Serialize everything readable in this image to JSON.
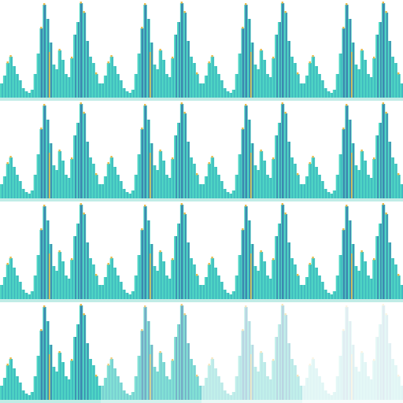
{
  "sheet": {
    "rows": 4,
    "columns": 4,
    "background": "#ffffff"
  },
  "palette": {
    "bar_light": "#4fd6c4",
    "bar_mid": "#3fb8bf",
    "bar_dark": "#3d89b0",
    "cap": "#e8b94a",
    "base": "#4bc9b6"
  },
  "pattern": {
    "heights": [
      18,
      28,
      44,
      52,
      40,
      30,
      22,
      12,
      8,
      6,
      10,
      30,
      56,
      88,
      118,
      100,
      70,
      42,
      36,
      60,
      48,
      30,
      26,
      50,
      80,
      96,
      120,
      108,
      72,
      52,
      44,
      30,
      18
    ],
    "tall_marks": [
      13,
      14,
      26
    ],
    "caps": [
      2,
      3,
      13,
      14,
      19,
      23,
      26,
      27,
      31
    ]
  },
  "last_row_fade": [
    1.0,
    0.7,
    0.35,
    0.15
  ]
}
